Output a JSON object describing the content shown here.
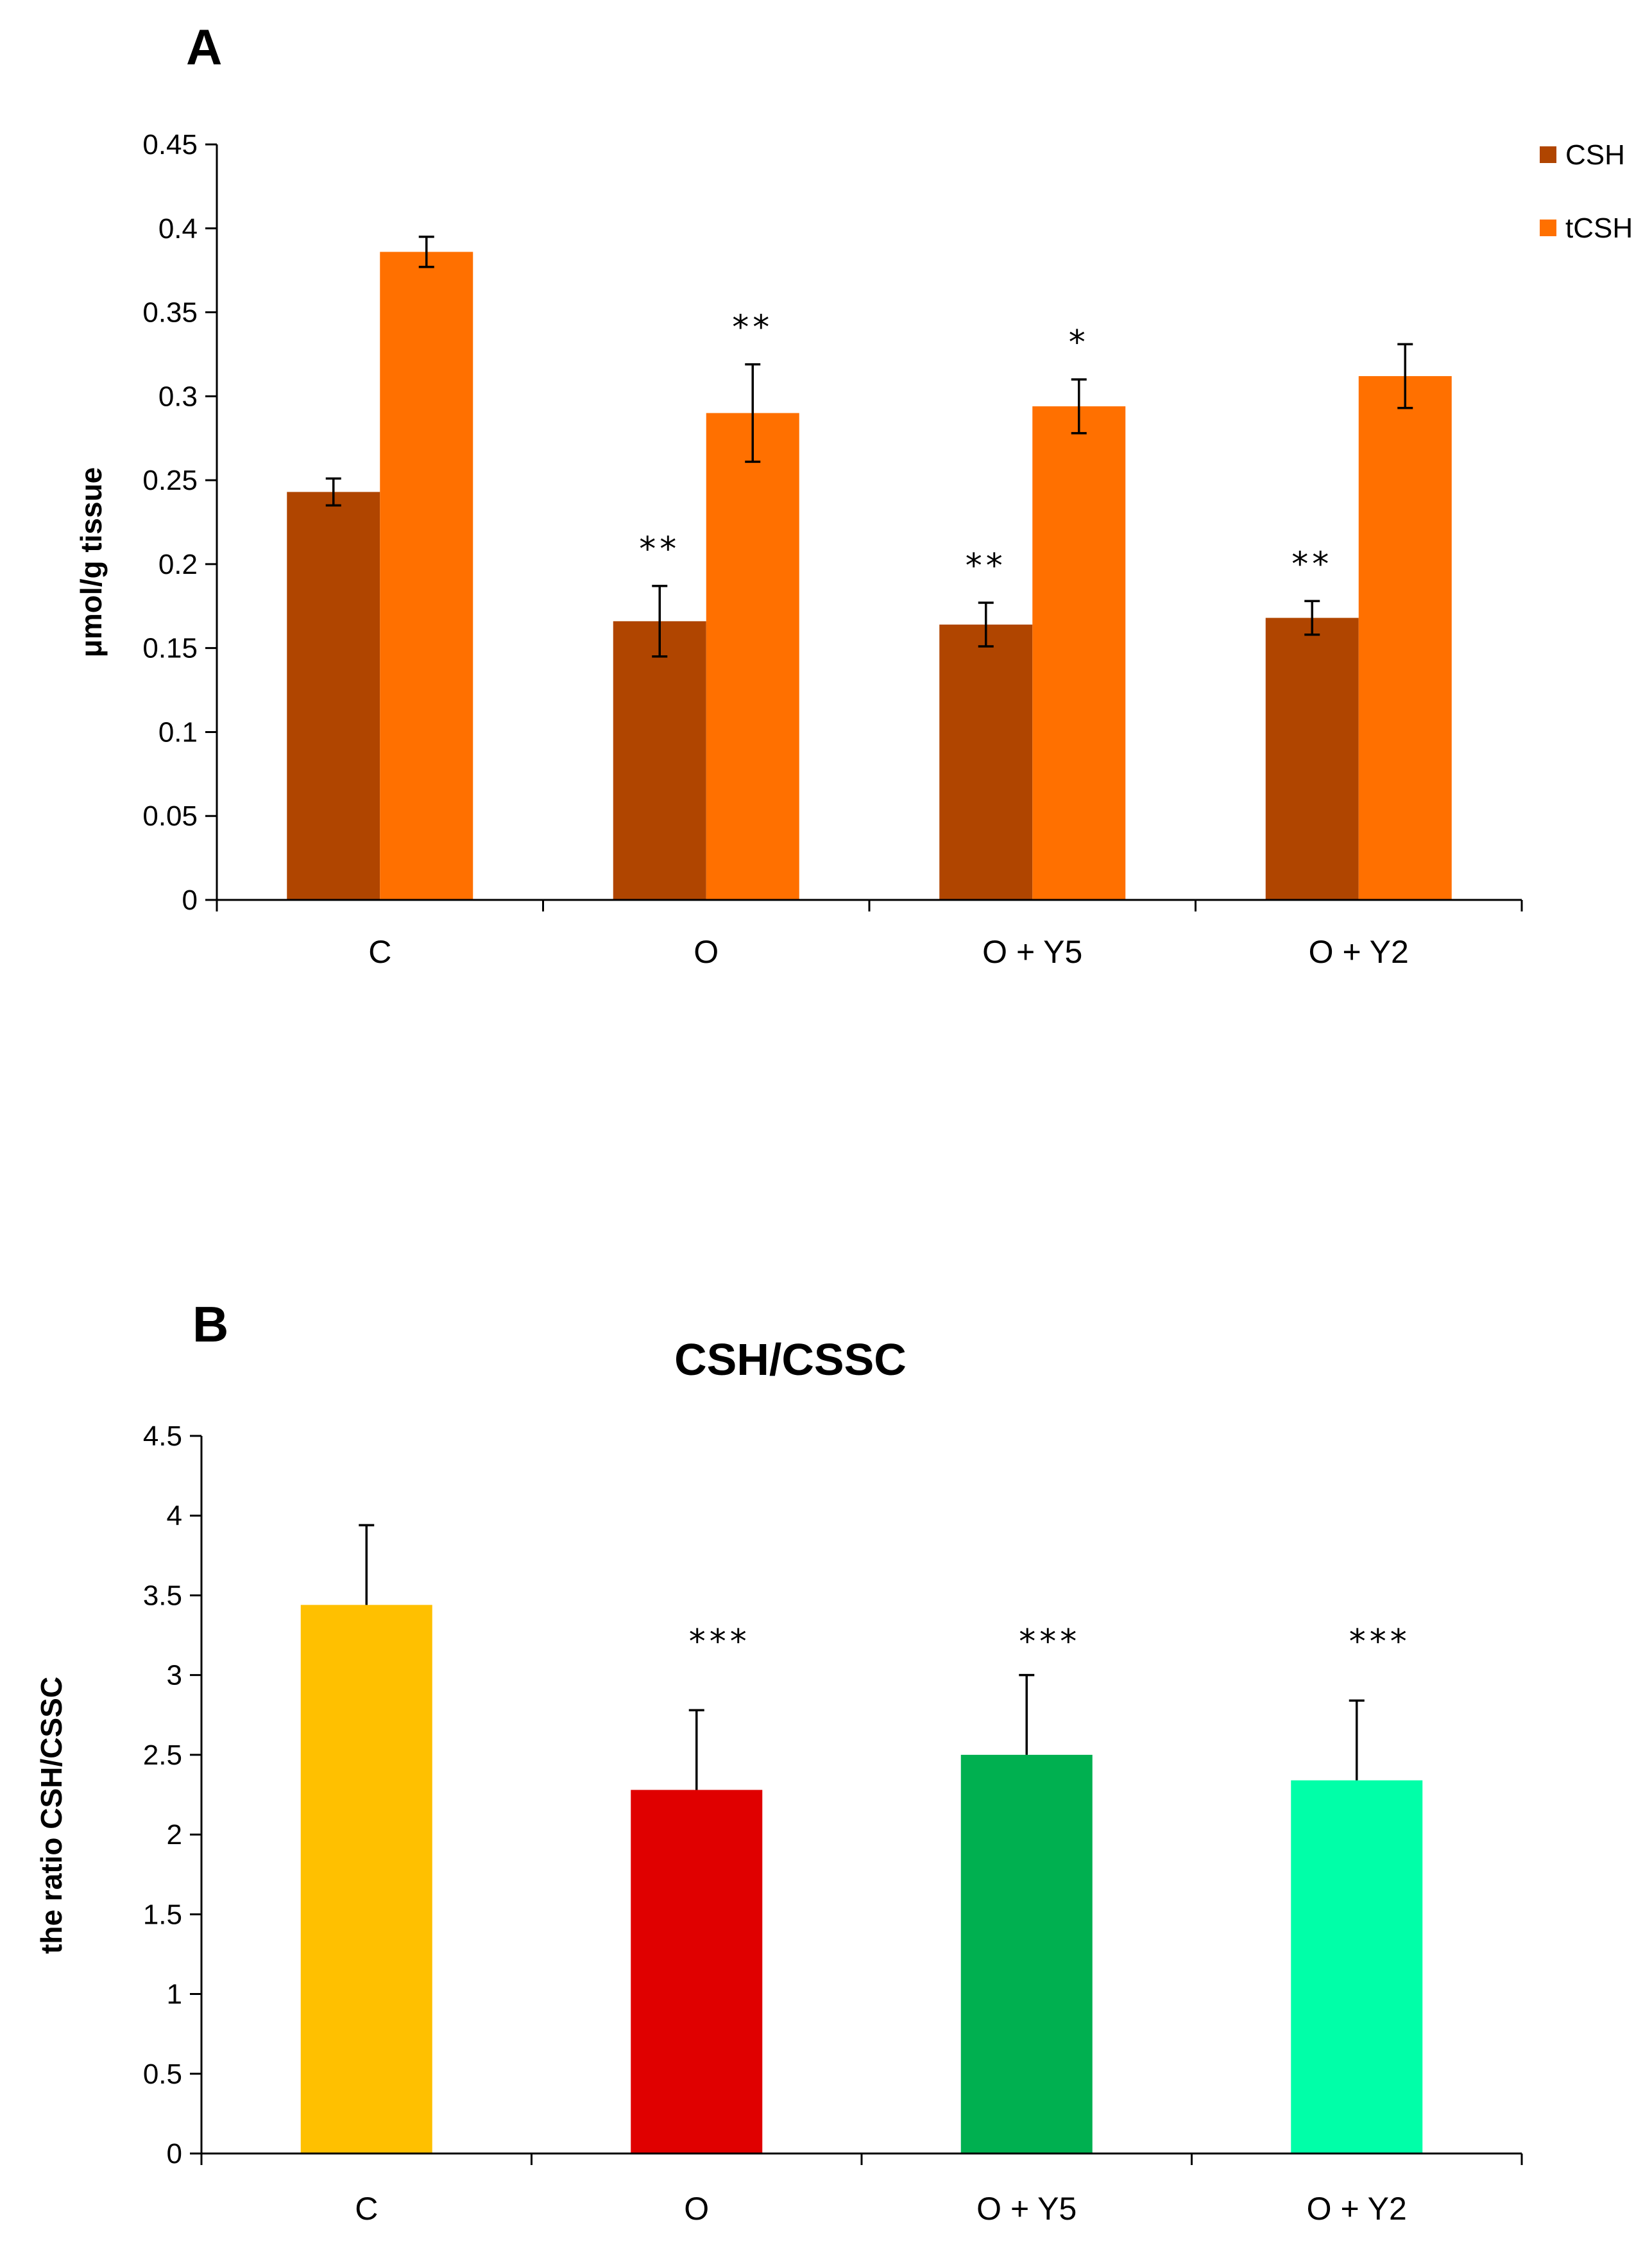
{
  "chart_data": [
    {
      "id": "A",
      "type": "bar",
      "panel_label": "A",
      "title": "",
      "xlabel": "",
      "ylabel": "μmol/g tissue",
      "ylim": [
        0,
        0.45
      ],
      "yticks": [
        0,
        0.05,
        0.1,
        0.15,
        0.2,
        0.25,
        0.3,
        0.35,
        0.4,
        0.45
      ],
      "ytick_labels": [
        "0",
        "0.05",
        "0.1",
        "0.15",
        "0.2",
        "0.25",
        "0.3",
        "0.35",
        "0.4",
        "0.45"
      ],
      "categories": [
        "C",
        "O",
        "O + Y5",
        "O + Y2"
      ],
      "legend_position": "top-right",
      "series": [
        {
          "name": "CSH",
          "color": "#B04500",
          "values": [
            0.243,
            0.166,
            0.164,
            0.168
          ],
          "errors": [
            0.008,
            0.021,
            0.013,
            0.01
          ],
          "significance": [
            "",
            "**",
            "**",
            "**"
          ]
        },
        {
          "name": "tCSH",
          "color": "#FF7000",
          "values": [
            0.386,
            0.29,
            0.294,
            0.312
          ],
          "errors": [
            0.009,
            0.029,
            0.016,
            0.019
          ],
          "significance": [
            "",
            "**",
            "*",
            ""
          ]
        }
      ]
    },
    {
      "id": "B",
      "type": "bar",
      "panel_label": "B",
      "title": "CSH/CSSC",
      "xlabel": "",
      "ylabel": "the ratio CSH/CSSC",
      "ylim": [
        0,
        4.5
      ],
      "yticks": [
        0,
        0.5,
        1,
        1.5,
        2,
        2.5,
        3,
        3.5,
        4,
        4.5
      ],
      "ytick_labels": [
        "0",
        "0.5",
        "1",
        "1.5",
        "2",
        "2.5",
        "3",
        "3.5",
        "4",
        "4.5"
      ],
      "categories": [
        "C",
        "O",
        "O + Y5",
        "O + Y2"
      ],
      "colors": [
        "#FFC000",
        "#E00000",
        "#00B050",
        "#00FFA8"
      ],
      "values": [
        3.44,
        2.28,
        2.5,
        2.34
      ],
      "errors": [
        0.5,
        0.5,
        0.5,
        0.5
      ],
      "significance": [
        "",
        "***",
        "***",
        "***"
      ]
    }
  ]
}
